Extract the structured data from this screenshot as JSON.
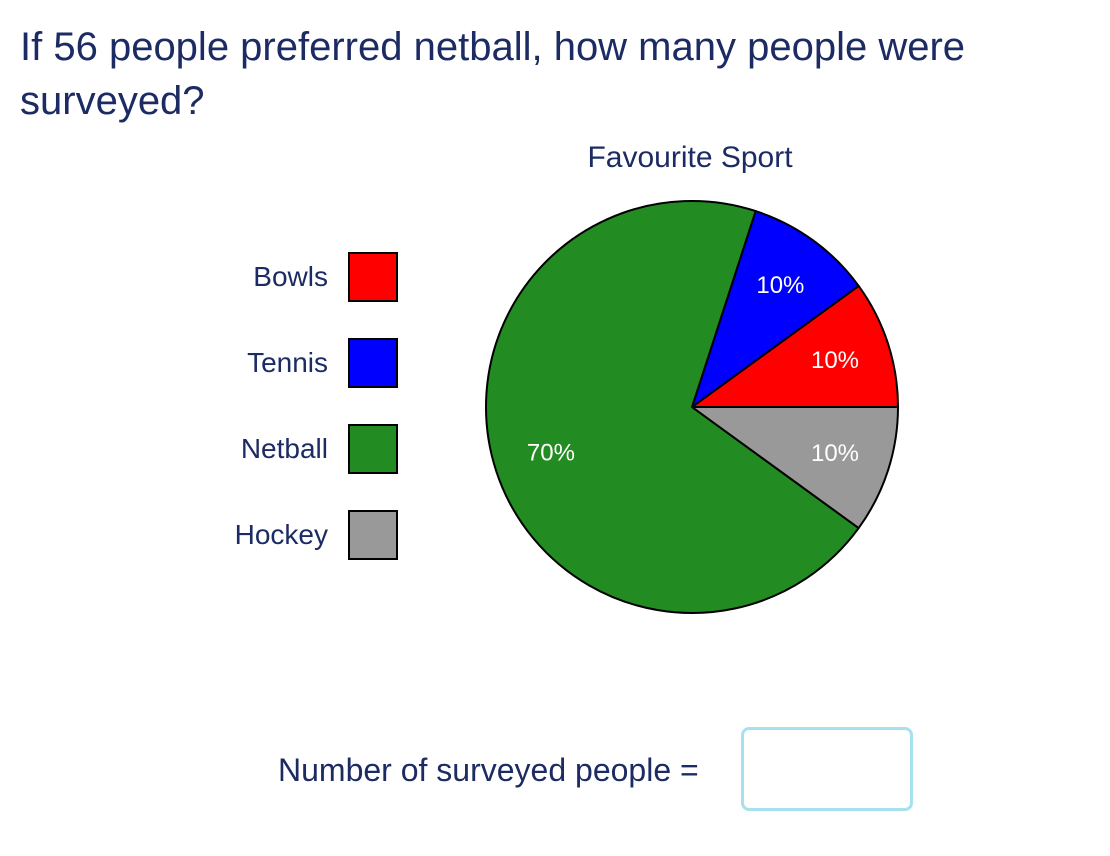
{
  "question": "If 56 people preferred netball, how many people were surveyed?",
  "answer_prompt": "Number of surveyed people =",
  "answer_value": "",
  "chart_data": {
    "type": "pie",
    "title": "Favourite Sport",
    "categories": [
      "Bowls",
      "Tennis",
      "Netball",
      "Hockey"
    ],
    "values": [
      10,
      10,
      70,
      10
    ],
    "labels": [
      "10%",
      "10%",
      "70%",
      "10%"
    ],
    "colors": [
      "#ff0000",
      "#0000ff",
      "#228b22",
      "#999999"
    ],
    "legend_placement": "left",
    "start_angle_deg": 0,
    "direction": "counterclockwise",
    "label_color": "#ffffff",
    "border_color": "#000000"
  }
}
